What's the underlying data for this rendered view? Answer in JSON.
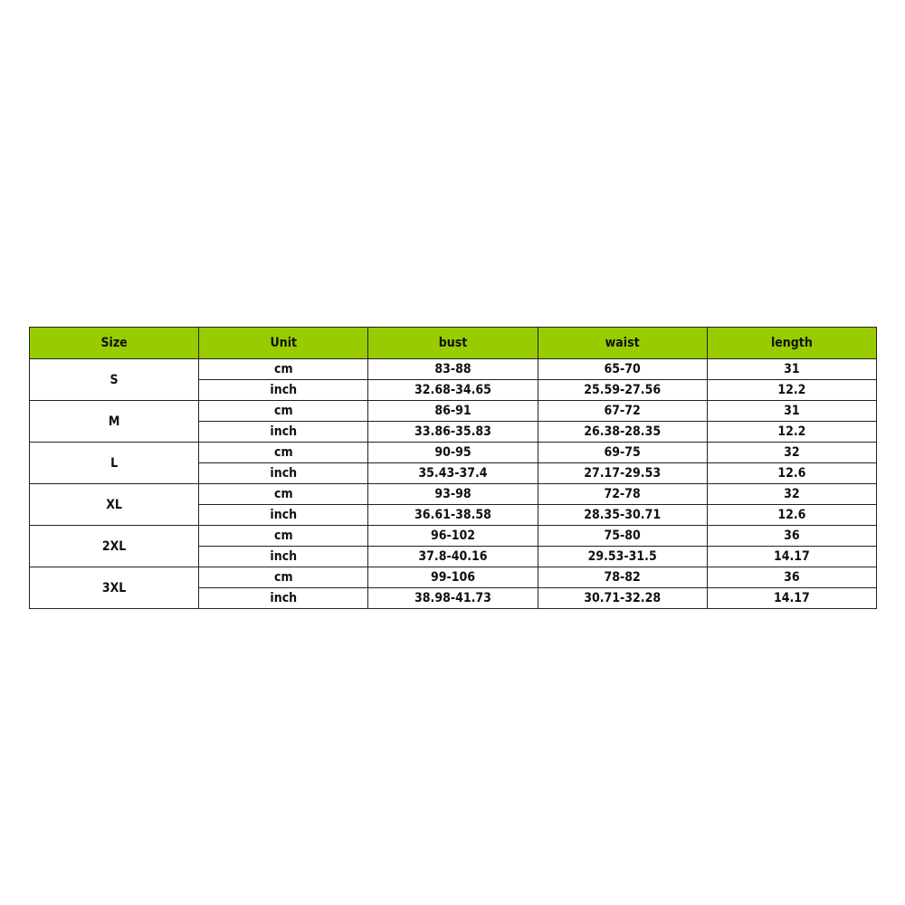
{
  "colors": {
    "header_bg": "#99cc00",
    "border": "#222222"
  },
  "headers": [
    "Size",
    "Unit",
    "bust",
    "waist",
    "length"
  ],
  "rows": [
    {
      "size": "S",
      "cm": {
        "unit": "cm",
        "bust": "83-88",
        "waist": "65-70",
        "length": "31"
      },
      "inch": {
        "unit": "inch",
        "bust": "32.68-34.65",
        "waist": "25.59-27.56",
        "length": "12.2"
      }
    },
    {
      "size": "M",
      "cm": {
        "unit": "cm",
        "bust": "86-91",
        "waist": "67-72",
        "length": "31"
      },
      "inch": {
        "unit": "inch",
        "bust": "33.86-35.83",
        "waist": "26.38-28.35",
        "length": "12.2"
      }
    },
    {
      "size": "L",
      "cm": {
        "unit": "cm",
        "bust": "90-95",
        "waist": "69-75",
        "length": "32"
      },
      "inch": {
        "unit": "inch",
        "bust": "35.43-37.4",
        "waist": "27.17-29.53",
        "length": "12.6"
      }
    },
    {
      "size": "XL",
      "cm": {
        "unit": "cm",
        "bust": "93-98",
        "waist": "72-78",
        "length": "32"
      },
      "inch": {
        "unit": "inch",
        "bust": "36.61-38.58",
        "waist": "28.35-30.71",
        "length": "12.6"
      }
    },
    {
      "size": "2XL",
      "cm": {
        "unit": "cm",
        "bust": "96-102",
        "waist": "75-80",
        "length": "36"
      },
      "inch": {
        "unit": "inch",
        "bust": "37.8-40.16",
        "waist": "29.53-31.5",
        "length": "14.17"
      }
    },
    {
      "size": "3XL",
      "cm": {
        "unit": "cm",
        "bust": "99-106",
        "waist": "78-82",
        "length": "36"
      },
      "inch": {
        "unit": "inch",
        "bust": "38.98-41.73",
        "waist": "30.71-32.28",
        "length": "14.17"
      }
    }
  ]
}
